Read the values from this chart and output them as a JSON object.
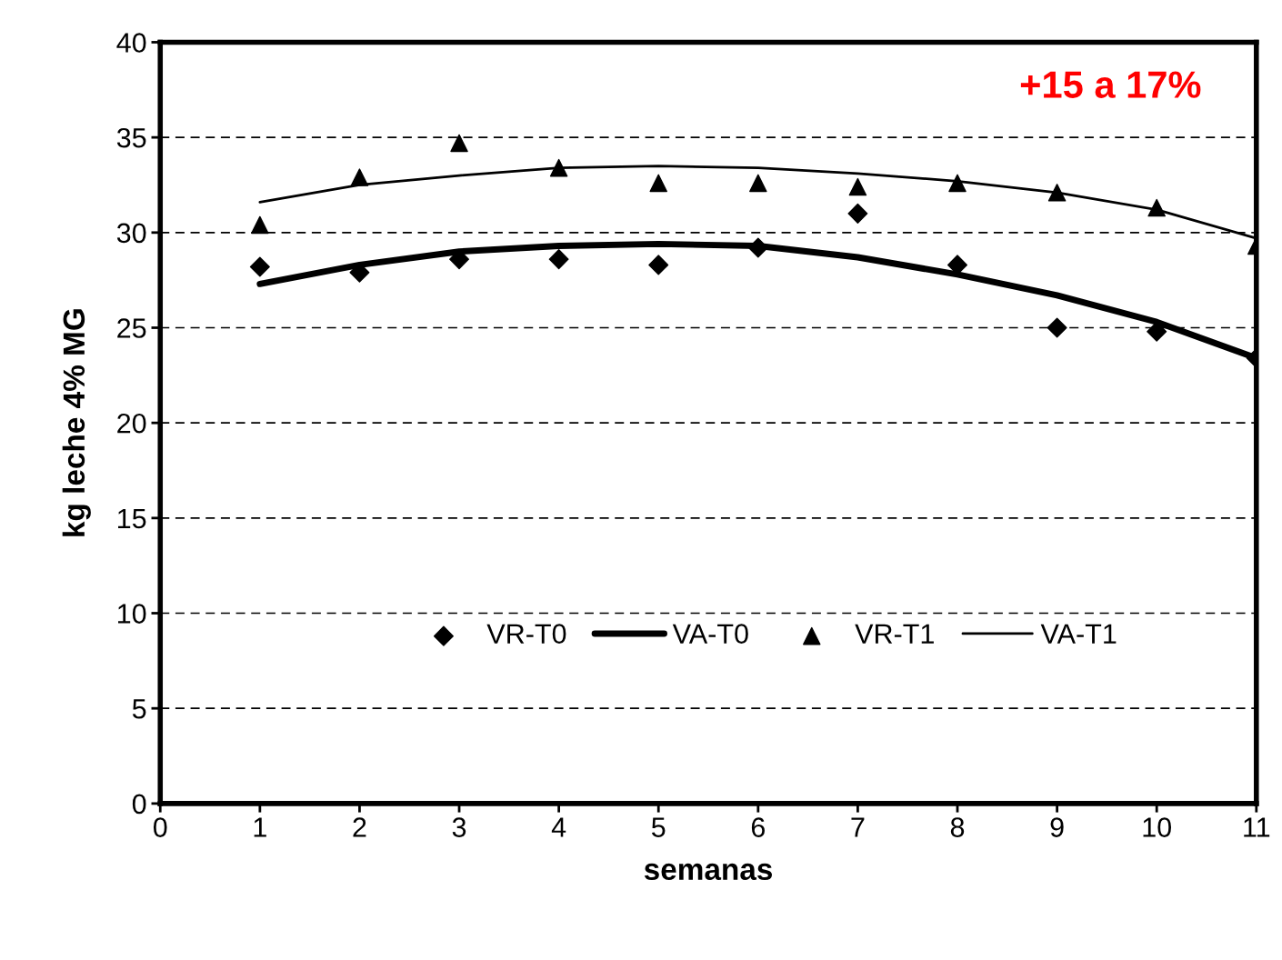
{
  "chart_data": {
    "type": "scatter",
    "xlabel": "semanas",
    "ylabel": "kg leche 4% MG",
    "x": [
      1,
      2,
      3,
      4,
      5,
      6,
      7,
      8,
      9,
      10,
      11
    ],
    "series": [
      {
        "name": "VR-T0",
        "marker": "diamond",
        "color": "#000000",
        "values": [
          28.2,
          27.9,
          28.6,
          28.6,
          28.3,
          29.2,
          31.0,
          28.3,
          25.0,
          24.8,
          23.4
        ]
      },
      {
        "name": "VA-T0",
        "type": "line",
        "marker": "none",
        "line_style": "solid",
        "color": "#000000",
        "values": [
          27.3,
          28.3,
          29.0,
          29.3,
          29.4,
          29.3,
          28.7,
          27.8,
          26.7,
          25.3,
          23.4
        ]
      },
      {
        "name": "VR-T1",
        "marker": "triangle",
        "color": "#000000",
        "values": [
          30.4,
          32.9,
          34.7,
          33.4,
          32.6,
          32.6,
          32.4,
          32.6,
          32.1,
          31.3,
          29.3
        ]
      },
      {
        "name": "VA-T1",
        "type": "line",
        "marker": "none",
        "line_style": "solid",
        "color": "#000000",
        "values": [
          31.6,
          32.5,
          33.0,
          33.4,
          33.5,
          33.4,
          33.1,
          32.7,
          32.1,
          31.2,
          29.7
        ]
      }
    ],
    "xlim": [
      0,
      11
    ],
    "xticks": [
      0,
      1,
      2,
      3,
      4,
      5,
      6,
      7,
      8,
      9,
      10,
      11
    ],
    "ylim": [
      0,
      40
    ],
    "yticks": [
      0,
      5,
      10,
      15,
      20,
      25,
      30,
      35,
      40
    ],
    "grid": "y",
    "legend": "bottom",
    "annotations": [
      "+15 a 17%"
    ]
  }
}
